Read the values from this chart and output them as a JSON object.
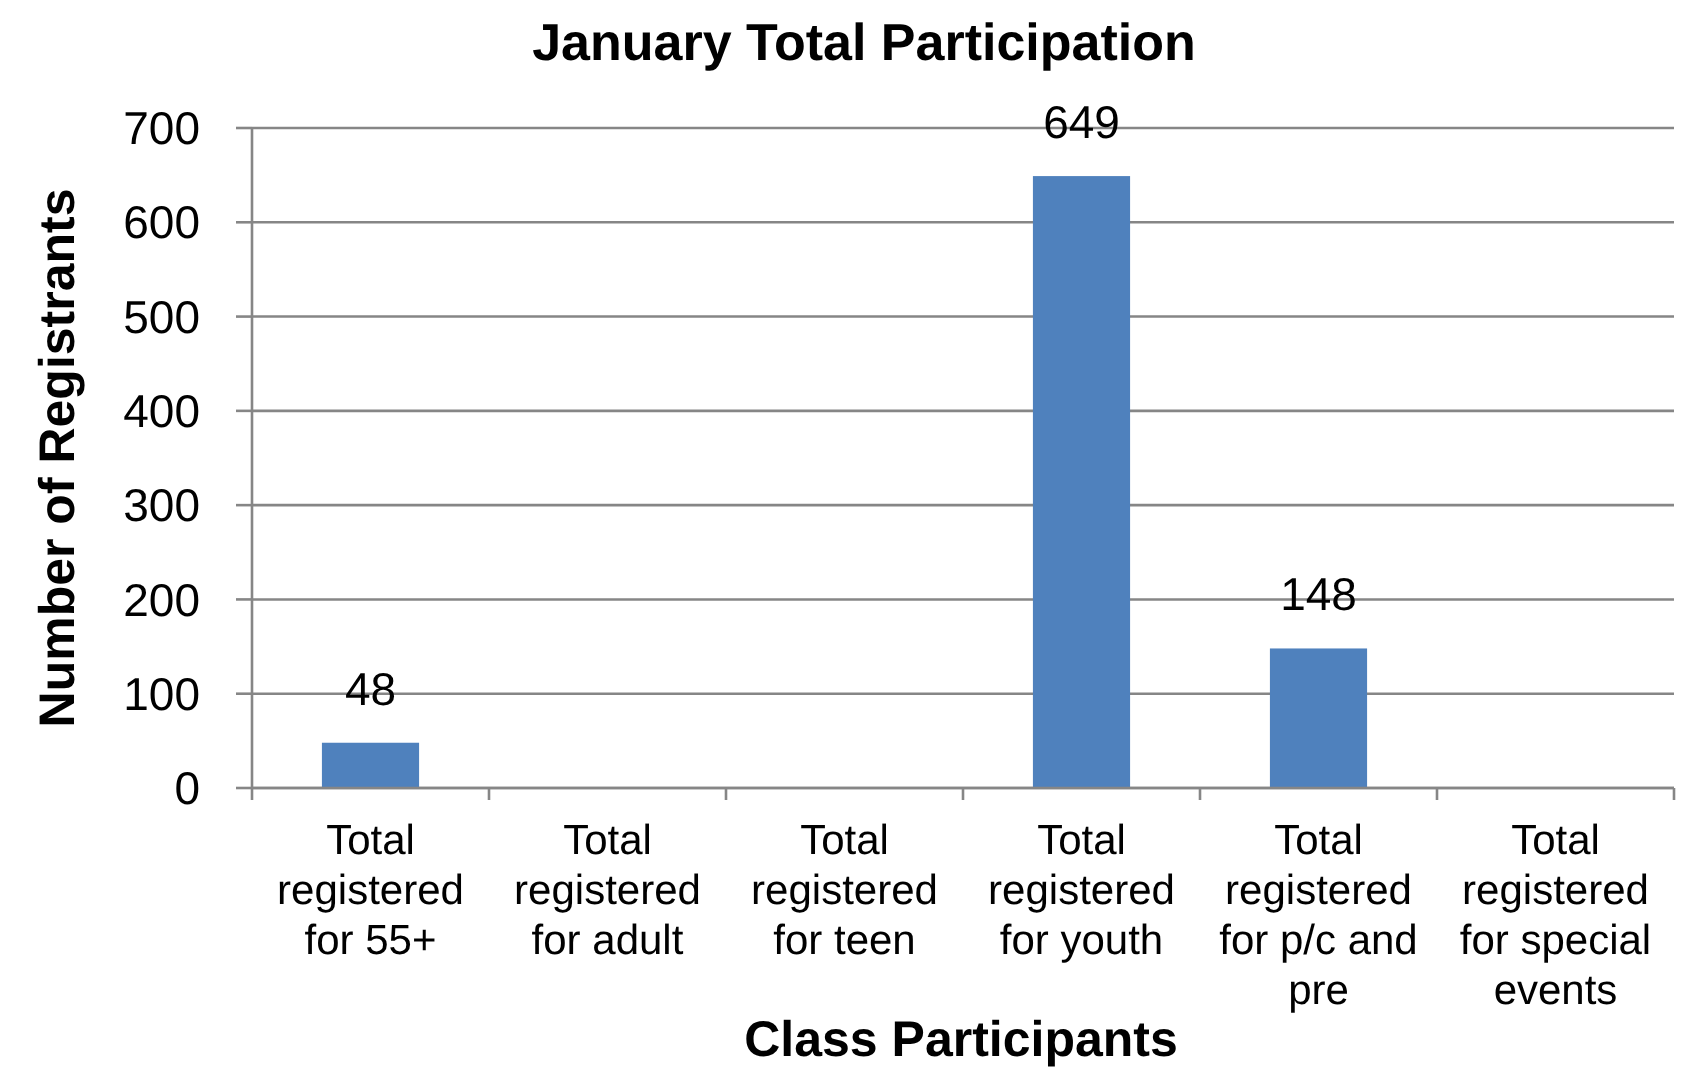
{
  "chart_data": {
    "type": "bar",
    "title": "January Total Participation",
    "xlabel": "Class Participants",
    "ylabel": "Number of Registrants",
    "categories": [
      "Total registered for 55+",
      "Total registered for adult",
      "Total registered for teen",
      "Total registered for youth",
      "Total registered for p/c and pre",
      "Total registered for special events"
    ],
    "values": [
      48,
      null,
      null,
      649,
      148,
      null
    ],
    "color": "#4f81bd",
    "ylim": [
      0,
      700
    ],
    "yticks": [
      0,
      100,
      200,
      300,
      400,
      500,
      600,
      700
    ],
    "grid": "y",
    "data_labels": true
  }
}
